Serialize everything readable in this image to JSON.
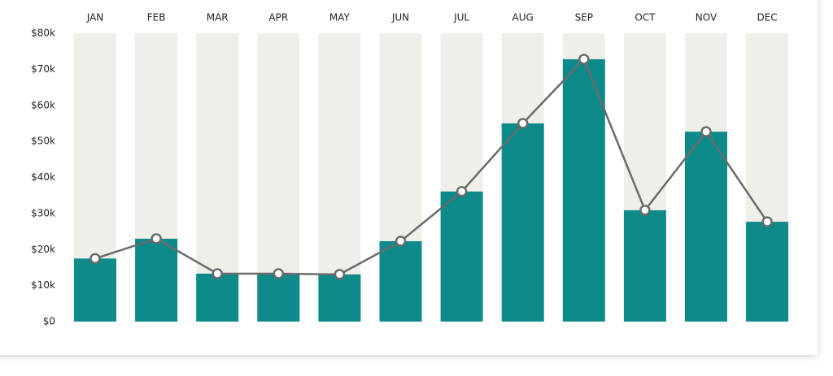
{
  "chart_data": {
    "type": "bar",
    "categories": [
      "JAN",
      "FEB",
      "MAR",
      "APR",
      "MAY",
      "JUN",
      "JUL",
      "AUG",
      "SEP",
      "OCT",
      "NOV",
      "DEC"
    ],
    "values": [
      17500,
      23000,
      13300,
      13300,
      13100,
      22300,
      36100,
      55000,
      72800,
      30900,
      52700,
      27700
    ],
    "color": "#0d8a8a",
    "track_color": "#efeee9",
    "line": true,
    "line_color": "#6b6b6b",
    "ylim": [
      0,
      80000
    ],
    "yticks": [
      {
        "value": 0,
        "label": "$0"
      },
      {
        "value": 10000,
        "label": "$10k"
      },
      {
        "value": 20000,
        "label": "$20k"
      },
      {
        "value": 30000,
        "label": "$30k"
      },
      {
        "value": 40000,
        "label": "$40k"
      },
      {
        "value": 50000,
        "label": "$50k"
      },
      {
        "value": 60000,
        "label": "$60k"
      },
      {
        "value": 70000,
        "label": "$70k"
      },
      {
        "value": 80000,
        "label": "$80k"
      }
    ]
  }
}
